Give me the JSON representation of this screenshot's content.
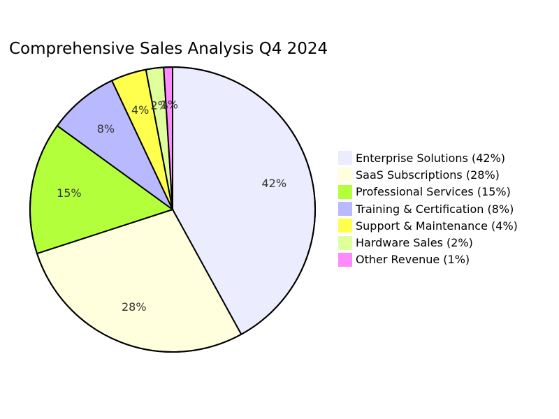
{
  "chart_data": {
    "type": "pie",
    "title": "Comprehensive Sales Analysis Q4 2024",
    "slices": [
      {
        "label": "Enterprise Solutions",
        "value": 42,
        "pct_text": "42%",
        "legend": "Enterprise Solutions (42%)",
        "color": "#ececff"
      },
      {
        "label": "SaaS Subscriptions",
        "value": 28,
        "pct_text": "28%",
        "legend": "SaaS Subscriptions (28%)",
        "color": "#ffffde"
      },
      {
        "label": "Professional Services",
        "value": 15,
        "pct_text": "15%",
        "legend": "Professional Services (15%)",
        "color": "#b4ff3c"
      },
      {
        "label": "Training & Certification",
        "value": 8,
        "pct_text": "8%",
        "legend": "Training & Certification (8%)",
        "color": "#b9b9ff"
      },
      {
        "label": "Support & Maintenance",
        "value": 4,
        "pct_text": "4%",
        "legend": "Support & Maintenance (4%)",
        "color": "#ffff4d"
      },
      {
        "label": "Hardware Sales",
        "value": 2,
        "pct_text": "2%",
        "legend": "Hardware Sales (2%)",
        "color": "#dfff9d"
      },
      {
        "label": "Other Revenue",
        "value": 1,
        "pct_text": "1%",
        "legend": "Other Revenue (1%)",
        "color": "#ff8aff"
      }
    ],
    "legend_position": "right"
  }
}
